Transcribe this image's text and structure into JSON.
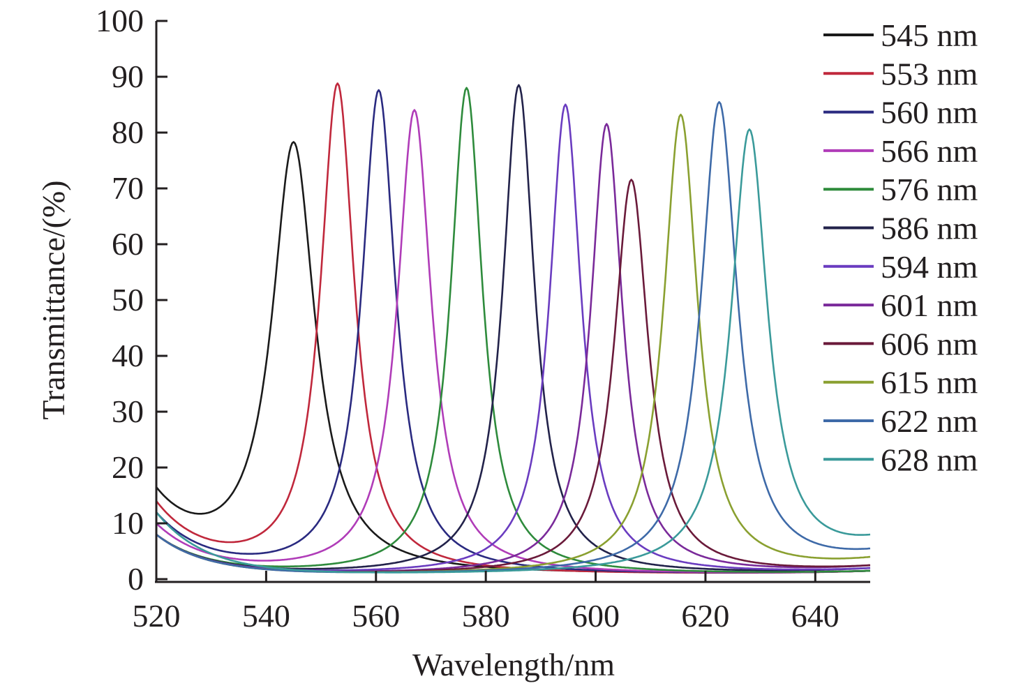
{
  "chart_data": {
    "type": "line",
    "title": "",
    "xlabel": "Wavelength/nm",
    "ylabel": "Transmittance/(%)",
    "xlim": [
      520,
      650
    ],
    "ylim": [
      0,
      100
    ],
    "xticks": [
      520,
      540,
      560,
      580,
      600,
      620,
      640
    ],
    "yticks": [
      0,
      10,
      20,
      30,
      40,
      50,
      60,
      70,
      80,
      90,
      100
    ],
    "grid": false,
    "legend_position": "top-right",
    "series": [
      {
        "name": "545 nm",
        "color": "#1a1a1a",
        "peak_wavelength": 545,
        "peak_transmittance": 77.5,
        "fwhm": 9.5,
        "value_at_520": 16.5,
        "value_at_650": 1.5
      },
      {
        "name": "553 nm",
        "color": "#c0283c",
        "peak_wavelength": 553,
        "peak_transmittance": 88.5,
        "fwhm": 7.5,
        "value_at_520": 14,
        "value_at_650": 1.5
      },
      {
        "name": "560 nm",
        "color": "#2a2a80",
        "peak_wavelength": 560.5,
        "peak_transmittance": 87.5,
        "fwhm": 7.5,
        "value_at_520": 12,
        "value_at_650": 1.5
      },
      {
        "name": "566 nm",
        "color": "#b03cb8",
        "peak_wavelength": 567,
        "peak_transmittance": 84,
        "fwhm": 7.5,
        "value_at_520": 10,
        "value_at_650": 1.5
      },
      {
        "name": "576 nm",
        "color": "#2e8b3c",
        "peak_wavelength": 576.5,
        "peak_transmittance": 88,
        "fwhm": 7,
        "value_at_520": 8,
        "value_at_650": 1.5
      },
      {
        "name": "586 nm",
        "color": "#22224a",
        "peak_wavelength": 586,
        "peak_transmittance": 88.5,
        "fwhm": 7,
        "value_at_520": 8,
        "value_at_650": 2
      },
      {
        "name": "594 nm",
        "color": "#6a3cc0",
        "peak_wavelength": 594.5,
        "peak_transmittance": 85,
        "fwhm": 7,
        "value_at_520": 8,
        "value_at_650": 2
      },
      {
        "name": "601 nm",
        "color": "#7a2a9a",
        "peak_wavelength": 602,
        "peak_transmittance": 81.5,
        "fwhm": 7,
        "value_at_520": 8,
        "value_at_650": 2.5
      },
      {
        "name": "606 nm",
        "color": "#6a1a3a",
        "peak_wavelength": 606.5,
        "peak_transmittance": 71.5,
        "fwhm": 7.5,
        "value_at_520": 8,
        "value_at_650": 2.5
      },
      {
        "name": "615 nm",
        "color": "#8aa030",
        "peak_wavelength": 615.5,
        "peak_transmittance": 83,
        "fwhm": 7.5,
        "value_at_520": 8,
        "value_at_650": 4
      },
      {
        "name": "622 nm",
        "color": "#3e6aa8",
        "peak_wavelength": 622.5,
        "peak_transmittance": 85,
        "fwhm": 8,
        "value_at_520": 8,
        "value_at_650": 5.5
      },
      {
        "name": "628 nm",
        "color": "#3a9a9a",
        "peak_wavelength": 628,
        "peak_transmittance": 79.5,
        "fwhm": 8,
        "value_at_520": 12,
        "value_at_650": 8
      }
    ]
  }
}
